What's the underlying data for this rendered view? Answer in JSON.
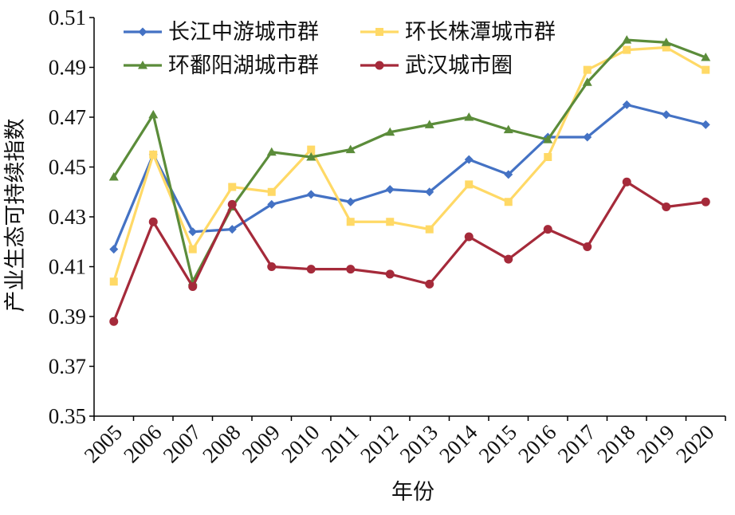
{
  "chart_data": {
    "type": "line",
    "title": "",
    "xlabel": "年份",
    "ylabel": "产业生态可持续指数",
    "ylim": [
      0.35,
      0.51
    ],
    "yticks": [
      "0.35",
      "0.37",
      "0.39",
      "0.41",
      "0.43",
      "0.45",
      "0.47",
      "0.49",
      "0.51"
    ],
    "categories": [
      "2005",
      "2006",
      "2007",
      "2008",
      "2009",
      "2010",
      "2011",
      "2012",
      "2013",
      "2014",
      "2015",
      "2016",
      "2017",
      "2018",
      "2019",
      "2020"
    ],
    "legend_position": "top-inside",
    "grid": false,
    "series": [
      {
        "name": "长江中游城市群",
        "color": "#4472C4",
        "marker": "diamond",
        "values": [
          0.417,
          0.455,
          0.424,
          0.425,
          0.435,
          0.439,
          0.436,
          0.441,
          0.44,
          0.453,
          0.447,
          0.462,
          0.462,
          0.475,
          0.471,
          0.467
        ]
      },
      {
        "name": "环长株潭城市群",
        "color": "#FFD966",
        "marker": "square",
        "values": [
          0.404,
          0.455,
          0.417,
          0.442,
          0.44,
          0.457,
          0.428,
          0.428,
          0.425,
          0.443,
          0.436,
          0.454,
          0.489,
          0.497,
          0.498,
          0.489
        ]
      },
      {
        "name": "环鄱阳湖城市群",
        "color": "#5B8C3A",
        "marker": "triangle",
        "values": [
          0.446,
          0.471,
          0.404,
          0.434,
          0.456,
          0.454,
          0.457,
          0.464,
          0.467,
          0.47,
          0.465,
          0.461,
          0.484,
          0.501,
          0.5,
          0.494
        ]
      },
      {
        "name": "武汉城市圈",
        "color": "#A52A3A",
        "marker": "circle",
        "values": [
          0.388,
          0.428,
          0.402,
          0.435,
          0.41,
          0.409,
          0.409,
          0.407,
          0.403,
          0.422,
          0.413,
          0.425,
          0.418,
          0.444,
          0.434,
          0.436
        ]
      }
    ]
  }
}
